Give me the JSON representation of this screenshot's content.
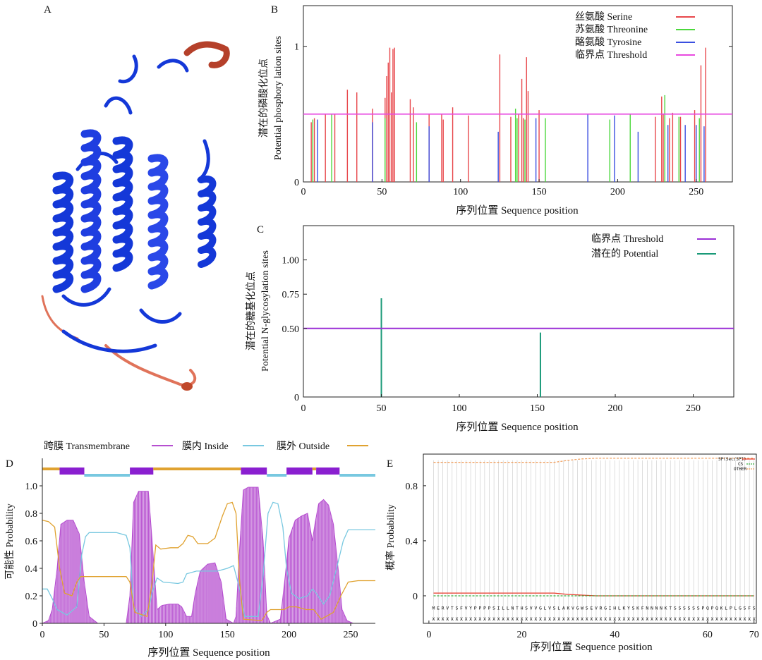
{
  "panel_letters": {
    "a": "A",
    "b": "B",
    "c": "C",
    "d": "D",
    "e": "E"
  },
  "colors": {
    "serine": "#e8474b",
    "threonine": "#4cd83c",
    "tyrosine": "#3a4fe0",
    "threshold_b": "#e84ae0",
    "threshold_c": "#9b2fd6",
    "potential": "#1a9a78",
    "tm_fill": "#b64fd0",
    "tm_bar": "#8a1fd0",
    "inside": "#78c8e0",
    "outside": "#e0a230",
    "sp": "#e83a2a",
    "cs": "#3cb043",
    "other": "#f0a060",
    "protein_main": "#1438d8",
    "protein_loop": "#e0735a",
    "protein_helix2": "#b5402a"
  },
  "chart_data": [
    {
      "id": "B",
      "type": "bar",
      "title": "",
      "xlabel": "序列位置 Sequence position",
      "ylabel_cn": "潜在的磷酸化位点",
      "ylabel_en": "Potential phosphory lation sites",
      "xlim": [
        0,
        273
      ],
      "ylim": [
        0,
        1.3
      ],
      "xticks": [
        0,
        50,
        100,
        150,
        200,
        250
      ],
      "yticks": [
        0,
        1
      ],
      "threshold": 0.5,
      "legend": [
        "丝氨酸 Serine",
        "苏氨酸 Threonine",
        "酪氨酸 Tyrosine",
        "临界点 Threshold"
      ],
      "series": [
        {
          "name": "Serine",
          "positions": [
            5,
            7,
            14,
            20,
            28,
            34,
            44,
            52,
            53,
            54,
            55,
            56,
            57,
            58,
            68,
            70,
            80,
            88,
            89,
            95,
            105,
            125,
            132,
            137,
            139,
            140,
            142,
            143,
            150,
            224,
            228,
            229,
            233,
            235,
            240,
            249,
            253,
            256
          ],
          "values": [
            0.44,
            0.47,
            0.5,
            0.5,
            0.68,
            0.66,
            0.54,
            0.62,
            0.78,
            0.88,
            0.99,
            0.66,
            0.98,
            0.99,
            0.61,
            0.55,
            0.5,
            0.5,
            0.46,
            0.55,
            0.49,
            0.94,
            0.48,
            0.5,
            0.76,
            0.47,
            0.92,
            0.67,
            0.53,
            0.48,
            0.63,
            0.5,
            0.47,
            0.51,
            0.48,
            0.53,
            0.86,
            0.99
          ]
        },
        {
          "name": "Threonine",
          "positions": [
            6,
            18,
            52,
            72,
            135,
            136,
            141,
            154,
            195,
            208,
            230,
            239,
            252
          ],
          "values": [
            0.46,
            0.5,
            0.47,
            0.44,
            0.54,
            0.47,
            0.46,
            0.47,
            0.46,
            0.5,
            0.64,
            0.48,
            0.47
          ]
        },
        {
          "name": "Tyrosine",
          "positions": [
            9,
            44,
            80,
            124,
            148,
            181,
            198,
            213,
            232,
            243,
            250,
            255
          ],
          "values": [
            0.46,
            0.44,
            0.41,
            0.37,
            0.47,
            0.5,
            0.49,
            0.37,
            0.42,
            0.42,
            0.42,
            0.41
          ]
        }
      ]
    },
    {
      "id": "C",
      "type": "bar",
      "xlabel": "序列位置 Sequence position",
      "ylabel_cn": "潜在的糖基化位点",
      "ylabel_en": "Potential N-glycosylation sites",
      "xlim": [
        0,
        276
      ],
      "ylim": [
        0,
        1.25
      ],
      "xticks": [
        0,
        50,
        100,
        150,
        200,
        250
      ],
      "yticks": [
        0,
        0.5,
        0.75,
        1.0
      ],
      "ytick_labels": [
        "0",
        "0.50",
        "0.75",
        "1.00"
      ],
      "threshold": 0.5,
      "legend": [
        "临界点 Threshold",
        "潜在的 Potential"
      ],
      "series": [
        {
          "name": "Potential",
          "positions": [
            50,
            152
          ],
          "values": [
            0.72,
            0.47
          ]
        }
      ]
    },
    {
      "id": "D",
      "type": "area",
      "xlabel": "序列位置 Sequence position",
      "ylabel": "可能性 Probability",
      "xlim": [
        0,
        270
      ],
      "ylim": [
        0,
        1.2
      ],
      "xticks": [
        0,
        50,
        100,
        150,
        200,
        250
      ],
      "yticks": [
        0,
        0.2,
        0.4,
        0.6,
        0.8,
        1.0
      ],
      "legend": [
        "跨膜 Transmembrane",
        "膜内 Inside",
        "膜外 Outside"
      ],
      "topology_bar": [
        {
          "type": "outside",
          "start": 0,
          "end": 14
        },
        {
          "type": "tm",
          "start": 14,
          "end": 34
        },
        {
          "type": "inside",
          "start": 34,
          "end": 71
        },
        {
          "type": "tm",
          "start": 71,
          "end": 90
        },
        {
          "type": "outside",
          "start": 90,
          "end": 161
        },
        {
          "type": "tm",
          "start": 161,
          "end": 182
        },
        {
          "type": "inside",
          "start": 182,
          "end": 198
        },
        {
          "type": "tm",
          "start": 198,
          "end": 219
        },
        {
          "type": "outside",
          "start": 219,
          "end": 222
        },
        {
          "type": "tm",
          "start": 222,
          "end": 241
        },
        {
          "type": "inside",
          "start": 241,
          "end": 270
        }
      ],
      "tm_profile": [
        [
          0,
          0
        ],
        [
          5,
          0.02
        ],
        [
          8,
          0.1
        ],
        [
          12,
          0.4
        ],
        [
          15,
          0.72
        ],
        [
          20,
          0.75
        ],
        [
          25,
          0.75
        ],
        [
          30,
          0.65
        ],
        [
          34,
          0.3
        ],
        [
          38,
          0.05
        ],
        [
          45,
          0
        ],
        [
          68,
          0
        ],
        [
          71,
          0.2
        ],
        [
          74,
          0.88
        ],
        [
          78,
          0.96
        ],
        [
          86,
          0.96
        ],
        [
          89,
          0.6
        ],
        [
          93,
          0.1
        ],
        [
          97,
          0.13
        ],
        [
          103,
          0.14
        ],
        [
          110,
          0.14
        ],
        [
          113,
          0.12
        ],
        [
          117,
          0.05
        ],
        [
          121,
          0.05
        ],
        [
          124,
          0.22
        ],
        [
          128,
          0.38
        ],
        [
          134,
          0.43
        ],
        [
          140,
          0.44
        ],
        [
          145,
          0.3
        ],
        [
          149,
          0.03
        ],
        [
          155,
          0
        ],
        [
          157,
          0.05
        ],
        [
          160,
          0.55
        ],
        [
          163,
          0.97
        ],
        [
          167,
          0.99
        ],
        [
          175,
          0.99
        ],
        [
          179,
          0.6
        ],
        [
          182,
          0.06
        ],
        [
          185,
          0
        ],
        [
          193,
          0.03
        ],
        [
          197,
          0.35
        ],
        [
          200,
          0.62
        ],
        [
          205,
          0.75
        ],
        [
          210,
          0.78
        ],
        [
          215,
          0.8
        ],
        [
          219,
          0.6
        ],
        [
          221,
          0.72
        ],
        [
          224,
          0.87
        ],
        [
          228,
          0.9
        ],
        [
          232,
          0.86
        ],
        [
          236,
          0.72
        ],
        [
          240,
          0.38
        ],
        [
          243,
          0.1
        ],
        [
          247,
          0.02
        ],
        [
          252,
          0
        ],
        [
          270,
          0
        ]
      ],
      "inside_profile": [
        [
          0,
          0.25
        ],
        [
          4,
          0.25
        ],
        [
          8,
          0.18
        ],
        [
          12,
          0.1
        ],
        [
          20,
          0.06
        ],
        [
          28,
          0.12
        ],
        [
          32,
          0.5
        ],
        [
          35,
          0.63
        ],
        [
          38,
          0.66
        ],
        [
          60,
          0.66
        ],
        [
          68,
          0.64
        ],
        [
          71,
          0.55
        ],
        [
          74,
          0.12
        ],
        [
          80,
          0.05
        ],
        [
          86,
          0.1
        ],
        [
          89,
          0.22
        ],
        [
          93,
          0.33
        ],
        [
          98,
          0.3
        ],
        [
          110,
          0.29
        ],
        [
          114,
          0.3
        ],
        [
          117,
          0.36
        ],
        [
          125,
          0.38
        ],
        [
          134,
          0.38
        ],
        [
          142,
          0.38
        ],
        [
          150,
          0.4
        ],
        [
          155,
          0.42
        ],
        [
          160,
          0.25
        ],
        [
          164,
          0.05
        ],
        [
          175,
          0.05
        ],
        [
          179,
          0.35
        ],
        [
          183,
          0.8
        ],
        [
          187,
          0.88
        ],
        [
          191,
          0.87
        ],
        [
          195,
          0.7
        ],
        [
          198,
          0.4
        ],
        [
          202,
          0.22
        ],
        [
          208,
          0.18
        ],
        [
          215,
          0.2
        ],
        [
          219,
          0.25
        ],
        [
          222,
          0.22
        ],
        [
          228,
          0.14
        ],
        [
          233,
          0.2
        ],
        [
          238,
          0.38
        ],
        [
          244,
          0.6
        ],
        [
          248,
          0.68
        ],
        [
          270,
          0.68
        ]
      ],
      "outside_profile": [
        [
          0,
          0.75
        ],
        [
          5,
          0.74
        ],
        [
          10,
          0.7
        ],
        [
          14,
          0.4
        ],
        [
          18,
          0.22
        ],
        [
          24,
          0.2
        ],
        [
          28,
          0.3
        ],
        [
          31,
          0.34
        ],
        [
          40,
          0.34
        ],
        [
          68,
          0.34
        ],
        [
          71,
          0.3
        ],
        [
          75,
          0.08
        ],
        [
          85,
          0.05
        ],
        [
          89,
          0.3
        ],
        [
          92,
          0.57
        ],
        [
          96,
          0.54
        ],
        [
          104,
          0.55
        ],
        [
          110,
          0.55
        ],
        [
          114,
          0.58
        ],
        [
          118,
          0.64
        ],
        [
          122,
          0.63
        ],
        [
          126,
          0.58
        ],
        [
          134,
          0.58
        ],
        [
          140,
          0.62
        ],
        [
          146,
          0.78
        ],
        [
          150,
          0.87
        ],
        [
          154,
          0.88
        ],
        [
          157,
          0.8
        ],
        [
          160,
          0.3
        ],
        [
          163,
          0.03
        ],
        [
          178,
          0.02
        ],
        [
          182,
          0.08
        ],
        [
          185,
          0.1
        ],
        [
          196,
          0.1
        ],
        [
          200,
          0.12
        ],
        [
          206,
          0.12
        ],
        [
          214,
          0.1
        ],
        [
          220,
          0.1
        ],
        [
          226,
          0.03
        ],
        [
          236,
          0.08
        ],
        [
          242,
          0.2
        ],
        [
          248,
          0.3
        ],
        [
          256,
          0.31
        ],
        [
          270,
          0.31
        ]
      ]
    },
    {
      "id": "E",
      "type": "line",
      "xlabel": "序列位置 Sequence position",
      "ylabel": "概率 Probability",
      "xlim": [
        -1.2,
        70.5
      ],
      "ylim": [
        -0.2,
        1.03
      ],
      "xticks": [
        0,
        20,
        40,
        60,
        70
      ],
      "yticks": [
        0,
        0.4,
        0.8
      ],
      "legend": [
        "SP(Sec/SPI)",
        "CS",
        "OTHER"
      ],
      "sequence": "MERVTSFVYPPPPSILLNTHSVVGLVSLAKVGWSEVRGIHLKYSKFNNNNKTSSSSSSPQPQKLPLGSFS",
      "cs_row": "XXXXXXXXXXXXXXXXXXXXXXXXXXXXXXXXXXXXXXXXXXXXXXXXXXXXXXXXXXXXXXXXXXXXXX",
      "series": [
        {
          "name": "SP(Sec/SPI)",
          "x": [
            1,
            10,
            20,
            27,
            30,
            33,
            36,
            40,
            70
          ],
          "values": [
            0.02,
            0.02,
            0.02,
            0.02,
            0.01,
            0.005,
            0,
            0,
            0
          ]
        },
        {
          "name": "CS",
          "x": [
            1,
            70
          ],
          "values": [
            0,
            0
          ]
        },
        {
          "name": "OTHER",
          "x": [
            1,
            10,
            20,
            27,
            30,
            33,
            36,
            40,
            70
          ],
          "values": [
            0.97,
            0.97,
            0.97,
            0.97,
            0.985,
            0.995,
            1.0,
            1.0,
            1.0
          ]
        }
      ]
    }
  ]
}
